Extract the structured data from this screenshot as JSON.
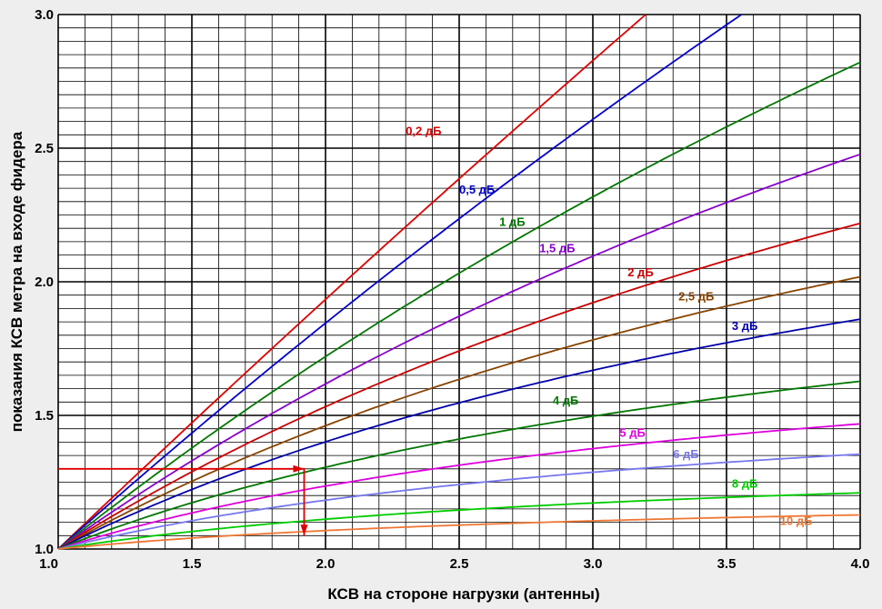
{
  "chart_data": {
    "type": "line",
    "xlabel": "КСВ на стороне нагрузки (антенны)",
    "ylabel": "показания КСВ метра на входе фидера",
    "xlim": [
      1.0,
      4.0
    ],
    "ylim": [
      1.0,
      3.0
    ],
    "x_ticks": [
      "1.0",
      "1.5",
      "2.0",
      "2.5",
      "3.0",
      "3.5",
      "4.0"
    ],
    "y_ticks": [
      "1.0",
      "1.5",
      "2.0",
      "2.5",
      "3.0"
    ],
    "x_tick_values": [
      1.0,
      1.5,
      2.0,
      2.5,
      3.0,
      3.5,
      4.0
    ],
    "y_tick_values": [
      1.0,
      1.5,
      2.0,
      2.5,
      3.0
    ],
    "grid": true,
    "series": [
      {
        "name": "0,2 дБ",
        "color": "#dd0000",
        "loss_db": 0.2,
        "label_at": [
          2.3,
          2.55
        ]
      },
      {
        "name": "0,5 дБ",
        "color": "#0000cc",
        "loss_db": 0.5,
        "label_at": [
          2.5,
          2.33
        ]
      },
      {
        "name": "1 дБ",
        "color": "#007700",
        "loss_db": 1.0,
        "label_at": [
          2.65,
          2.21
        ]
      },
      {
        "name": "1,5 дБ",
        "color": "#8800cc",
        "loss_db": 1.5,
        "label_at": [
          2.8,
          2.11
        ]
      },
      {
        "name": "2 дБ",
        "color": "#cc0000",
        "loss_db": 2.0,
        "label_at": [
          3.13,
          2.02
        ]
      },
      {
        "name": "2,5 дБ",
        "color": "#884400",
        "loss_db": 2.5,
        "label_at": [
          3.32,
          1.93
        ]
      },
      {
        "name": "3 дБ",
        "color": "#0000aa",
        "loss_db": 3.0,
        "label_at": [
          3.52,
          1.82
        ]
      },
      {
        "name": "4 дБ",
        "color": "#007700",
        "loss_db": 4.0,
        "label_at": [
          2.85,
          1.54
        ]
      },
      {
        "name": "5 дБ",
        "color": "#dd00dd",
        "loss_db": 5.0,
        "label_at": [
          3.1,
          1.42
        ]
      },
      {
        "name": "6 дБ",
        "color": "#7777ee",
        "loss_db": 6.0,
        "label_at": [
          3.3,
          1.34
        ]
      },
      {
        "name": "8 дБ",
        "color": "#00cc00",
        "loss_db": 8.0,
        "label_at": [
          3.52,
          1.23
        ]
      },
      {
        "name": "10 дБ",
        "color": "#ee7733",
        "loss_db": 10.0,
        "label_at": [
          3.7,
          1.09
        ]
      }
    ],
    "annotation": {
      "color": "#dd0000",
      "path": [
        [
          1.0,
          1.3
        ],
        [
          1.92,
          1.3
        ],
        [
          1.92,
          1.05
        ]
      ]
    }
  }
}
